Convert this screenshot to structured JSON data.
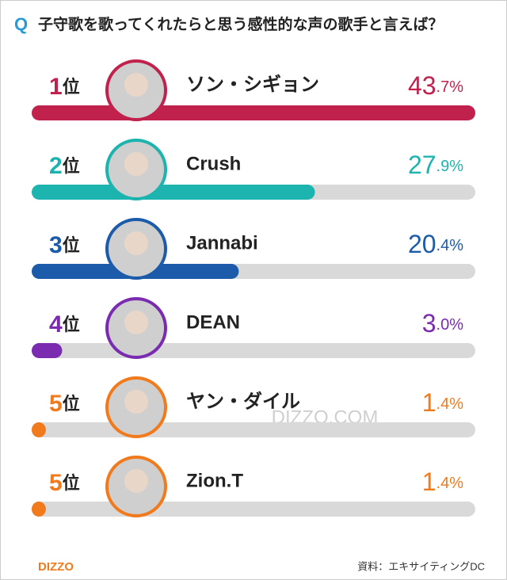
{
  "chart_data": {
    "type": "bar",
    "orientation": "horizontal",
    "title_prefix": "Q",
    "title": "子守歌を歌ってくれたらと思う感性的な声の歌手と言えば？",
    "ranks": [
      "1位",
      "2位",
      "3位",
      "4位",
      "5位",
      "5位"
    ],
    "categories": [
      "ソン・シギョン",
      "Crush",
      "Jannabi",
      "DEAN",
      "ヤン・ダイル",
      "Zion.T"
    ],
    "values": [
      43.7,
      27.9,
      20.4,
      3.0,
      1.4,
      1.4
    ],
    "value_labels": [
      "43.7%",
      "27.9%",
      "20.4%",
      "3.0%",
      "1.4%",
      "1.4%"
    ],
    "colors": [
      "#c0214d",
      "#1db3ae",
      "#1b5ba9",
      "#7a2bb0",
      "#f07a1c",
      "#f07a1c"
    ],
    "track_color": "#d9d9d9",
    "xlim": [
      0,
      43.7
    ],
    "watermark": "DIZZO.COM",
    "logo": "DIZZO",
    "source": "資料：エキサイティングDC"
  }
}
